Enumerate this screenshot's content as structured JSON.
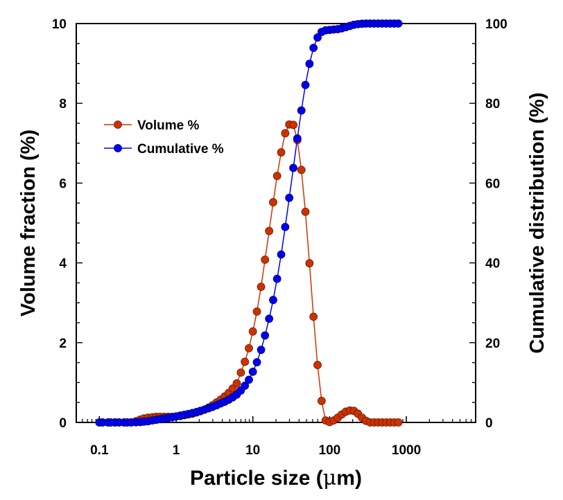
{
  "chart_data": {
    "type": "line",
    "title": "",
    "xlabel": "Particle size (",
    "xlabel_mu": "μ",
    "xlabel_m": "m",
    "xlabel_close": ")",
    "ylabel": "Volume fraction (%)",
    "y2label": "Cumulative distribution (%)",
    "xscale": "log",
    "xlim": [
      0.05,
      8000
    ],
    "ylim": [
      0,
      10
    ],
    "y2lim": [
      0,
      100
    ],
    "x_ticks": [
      0.1,
      1,
      10,
      100,
      1000
    ],
    "x_tick_labels": [
      "0.1",
      "1",
      "10",
      "100",
      "1000"
    ],
    "y_ticks": [
      0,
      2,
      4,
      6,
      8,
      10
    ],
    "y_tick_labels": [
      "0",
      "2",
      "4",
      "6",
      "8",
      "10"
    ],
    "y2_ticks": [
      0,
      20,
      40,
      60,
      80,
      100
    ],
    "y2_tick_labels": [
      "0",
      "20",
      "40",
      "60",
      "80",
      "100"
    ],
    "legend_position": "upper-left",
    "legend": [
      "Volume %",
      "Cumulative %"
    ],
    "series": [
      {
        "name": "Volume %",
        "axis": "left",
        "color": "#CC3300",
        "values": [
          0.0,
          0.0,
          0.0,
          0.0,
          0.0,
          0.0,
          0.0,
          0.0,
          0.0,
          0.03,
          0.07,
          0.1,
          0.12,
          0.13,
          0.14,
          0.14,
          0.14,
          0.14,
          0.14,
          0.15,
          0.16,
          0.18,
          0.2,
          0.22,
          0.25,
          0.28,
          0.32,
          0.37,
          0.43,
          0.5,
          0.57,
          0.65,
          0.74,
          0.85,
          0.98,
          1.25,
          1.52,
          1.86,
          2.28,
          2.78,
          3.4,
          4.08,
          4.8,
          5.52,
          6.18,
          6.77,
          7.25,
          7.47,
          7.46,
          7.08,
          6.33,
          5.28,
          3.99,
          2.65,
          1.44,
          0.54,
          0.05,
          0.01,
          0.05,
          0.12,
          0.2,
          0.27,
          0.3,
          0.29,
          0.22,
          0.12,
          0.04,
          0.0,
          0.0,
          0.0,
          0.0,
          0.0,
          0.0,
          0.0,
          0.0
        ]
      },
      {
        "name": "Cumulative %",
        "axis": "right",
        "color": "#0000EE",
        "values": [
          0.0,
          0.0,
          0.0,
          0.0,
          0.0,
          0.0,
          0.0,
          0.0,
          0.0,
          0.05,
          0.1,
          0.2,
          0.3,
          0.5,
          0.65,
          0.8,
          1.0,
          1.15,
          1.3,
          1.5,
          1.7,
          1.9,
          2.1,
          2.35,
          2.6,
          2.9,
          3.2,
          3.55,
          3.9,
          4.3,
          4.75,
          5.2,
          5.7,
          6.3,
          7.0,
          8.0,
          9.2,
          10.7,
          12.7,
          15.1,
          18.2,
          21.8,
          26.0,
          30.7,
          36.0,
          42.1,
          49.0,
          56.3,
          63.8,
          71.2,
          78.2,
          84.6,
          89.9,
          93.9,
          96.5,
          97.9,
          98.3,
          98.4,
          98.5,
          98.6,
          98.8,
          99.1,
          99.4,
          99.7,
          99.85,
          99.95,
          100.0,
          100.0,
          100.0,
          100.0,
          100.0,
          100.0,
          100.0,
          100.0,
          100.0
        ]
      }
    ],
    "x": [
      0.1,
      0.11,
      0.13,
      0.14,
      0.16,
      0.18,
      0.21,
      0.23,
      0.26,
      0.3,
      0.34,
      0.38,
      0.43,
      0.49,
      0.55,
      0.62,
      0.7,
      0.79,
      0.89,
      1.0,
      1.13,
      1.28,
      1.44,
      1.63,
      1.84,
      2.07,
      2.34,
      2.64,
      2.98,
      3.37,
      3.8,
      4.29,
      4.84,
      5.47,
      6.17,
      6.97,
      7.87,
      8.88,
      10.0,
      11.3,
      12.8,
      14.4,
      16.3,
      18.4,
      20.7,
      23.4,
      26.4,
      29.8,
      33.7,
      38.0,
      42.9,
      48.4,
      54.7,
      61.7,
      69.7,
      78.7,
      88.8,
      100.0,
      113.0,
      128.0,
      144.0,
      163.0,
      184.0,
      207.0,
      234.0,
      264.0,
      298.0,
      337.0,
      380.0,
      429.0,
      484.0,
      547.0,
      617.0,
      697.0,
      787.0
    ]
  }
}
